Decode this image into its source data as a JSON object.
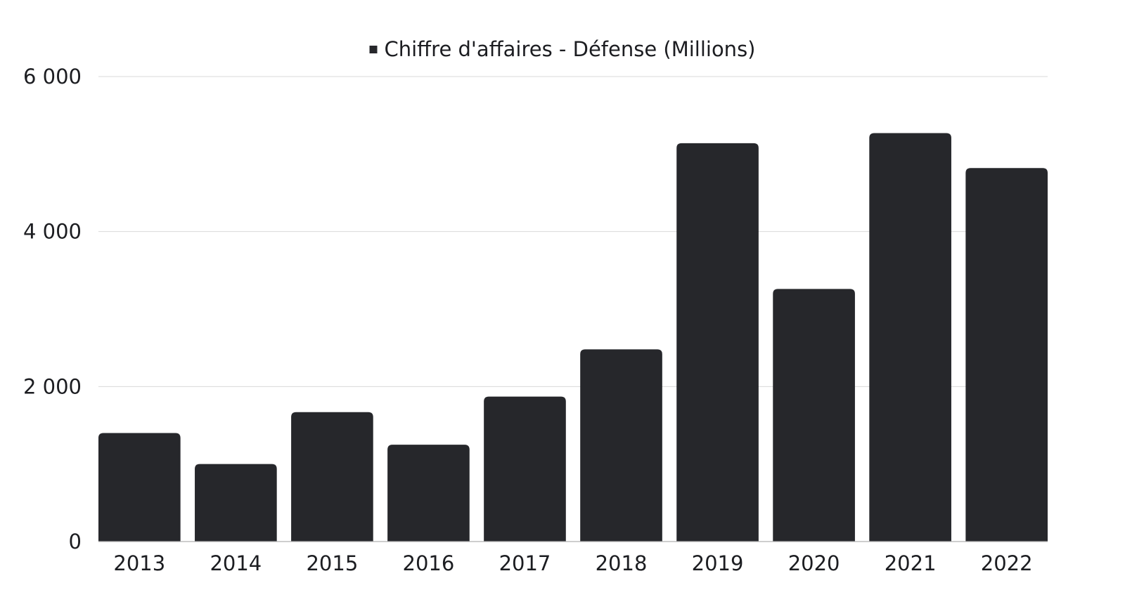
{
  "chart_data": {
    "type": "bar",
    "categories": [
      "2013",
      "2014",
      "2015",
      "2016",
      "2017",
      "2018",
      "2019",
      "2020",
      "2021",
      "2022"
    ],
    "series": [
      {
        "name": "Chiffre d'affaires - Défense (Millions)",
        "values": [
          1400,
          1000,
          1670,
          1250,
          1870,
          2480,
          5140,
          3260,
          5270,
          4820
        ],
        "color": "#26272b"
      }
    ],
    "yticks": [
      "0",
      "2 000",
      "4 000",
      "6 000"
    ],
    "ytick_values": [
      0,
      2000,
      4000,
      6000
    ],
    "ylim": [
      0,
      6000
    ],
    "grid": true,
    "legend_position": "top-center",
    "legend_marker": "■"
  }
}
